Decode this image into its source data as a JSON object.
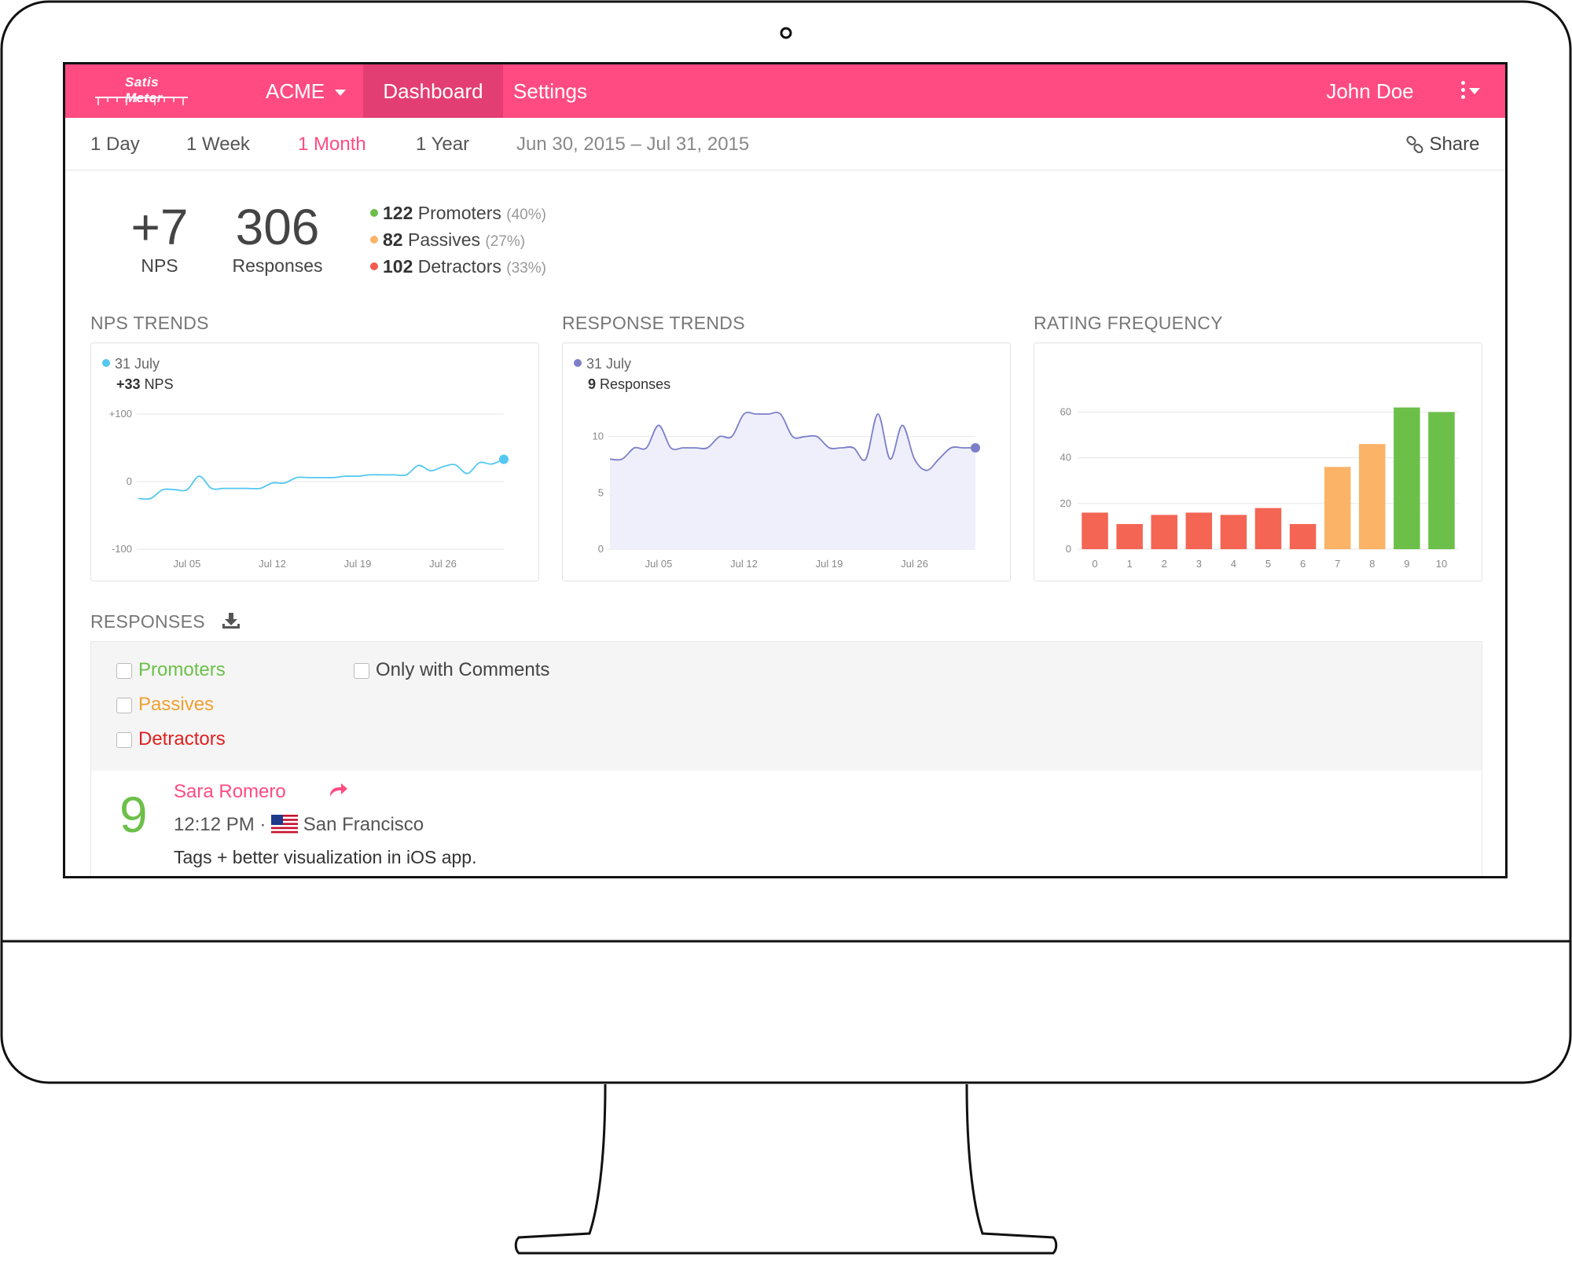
{
  "app": {
    "logo": "Satis Meter"
  },
  "navbar": {
    "account": "ACME",
    "tabs": [
      {
        "label": "Dashboard"
      },
      {
        "label": "Settings"
      }
    ],
    "user": "John Doe"
  },
  "subbar": {
    "ranges": [
      {
        "label": "1 Day"
      },
      {
        "label": "1 Week"
      },
      {
        "label": "1 Month"
      },
      {
        "label": "1 Year"
      }
    ],
    "active_range": "1 Month",
    "date_range": "Jun 30, 2015 – Jul 31, 2015",
    "share_label": "Share"
  },
  "summary": {
    "nps_value": "+7",
    "nps_label": "NPS",
    "responses_value": "306",
    "responses_label": "Responses",
    "breakdown": [
      {
        "count": "122",
        "label": "Promoters",
        "pct": "(40%)",
        "color": "#6cc04a"
      },
      {
        "count": "82",
        "label": "Passives",
        "pct": "(27%)",
        "color": "#fbb368"
      },
      {
        "count": "102",
        "label": "Detractors",
        "pct": "(33%)",
        "color": "#f15b4d"
      }
    ]
  },
  "charts": {
    "nps_trends": {
      "title": "NPS TRENDS",
      "tooltip_date": "31 July",
      "tooltip_value_bold": "+33",
      "tooltip_value_suffix": "NPS",
      "color": "#54c8f0"
    },
    "response_trends": {
      "title": "RESPONSE TRENDS",
      "tooltip_date": "31 July",
      "tooltip_value_bold": "9",
      "tooltip_value_suffix": "Responses",
      "color": "#7c7fc8"
    },
    "rating_frequency": {
      "title": "RATING FREQUENCY"
    }
  },
  "chart_data": [
    {
      "type": "line",
      "title": "NPS TRENDS",
      "x_tick_labels": [
        "Jul 05",
        "Jul 12",
        "Jul 19",
        "Jul 26"
      ],
      "y_tick_labels": [
        "+100",
        "0",
        "-100"
      ],
      "ylim": [
        -100,
        100
      ],
      "x": [
        1,
        2,
        3,
        4,
        5,
        6,
        7,
        8,
        9,
        10,
        11,
        12,
        13,
        14,
        15,
        16,
        17,
        18,
        19,
        20,
        21,
        22,
        23,
        24,
        25,
        26,
        27,
        28,
        29,
        30,
        31
      ],
      "values": [
        -25,
        -25,
        -12,
        -12,
        -12,
        8,
        -10,
        -10,
        -10,
        -10,
        -10,
        -2,
        -2,
        6,
        6,
        6,
        6,
        8,
        8,
        10,
        10,
        10,
        10,
        24,
        16,
        22,
        25,
        12,
        28,
        26,
        33
      ]
    },
    {
      "type": "area",
      "title": "RESPONSE TRENDS",
      "x_tick_labels": [
        "Jul 05",
        "Jul 12",
        "Jul 19",
        "Jul 26"
      ],
      "y_tick_labels": [
        "10",
        "5",
        "0"
      ],
      "ylim": [
        0,
        12
      ],
      "x": [
        1,
        2,
        3,
        4,
        5,
        6,
        7,
        8,
        9,
        10,
        11,
        12,
        13,
        14,
        15,
        16,
        17,
        18,
        19,
        20,
        21,
        22,
        23,
        24,
        25,
        26,
        27,
        28,
        29,
        30,
        31
      ],
      "values": [
        8,
        8,
        9,
        9,
        11,
        9,
        9,
        9,
        9,
        10,
        10,
        12,
        12,
        12,
        12,
        10,
        10,
        10,
        9,
        9,
        9,
        8,
        12,
        8,
        11,
        8,
        7,
        8,
        9,
        9,
        9
      ]
    },
    {
      "type": "bar",
      "title": "RATING FREQUENCY",
      "categories": [
        "0",
        "1",
        "2",
        "3",
        "4",
        "5",
        "6",
        "7",
        "8",
        "9",
        "10"
      ],
      "values": [
        16,
        11,
        15,
        16,
        15,
        18,
        11,
        36,
        46,
        62,
        60
      ],
      "colors": [
        "#f46554",
        "#f46554",
        "#f46554",
        "#f46554",
        "#f46554",
        "#f46554",
        "#f46554",
        "#fbb368",
        "#fbb368",
        "#6cc04a",
        "#6cc04a"
      ],
      "y_tick_labels": [
        "60",
        "40",
        "20",
        "0"
      ],
      "ylim": [
        0,
        66
      ]
    }
  ],
  "responses": {
    "title": "RESPONSES",
    "filters": [
      {
        "label": "Promoters",
        "color": "#6cc04a"
      },
      {
        "label": "Passives",
        "color": "#f0a030"
      },
      {
        "label": "Detractors",
        "color": "#e02020"
      }
    ],
    "comments_filter": "Only with Comments",
    "items": [
      {
        "score": "9",
        "name": "Sara Romero",
        "time": "12:12 PM",
        "location": "San Francisco",
        "comment": "Tags + better visualization in iOS app."
      }
    ]
  }
}
